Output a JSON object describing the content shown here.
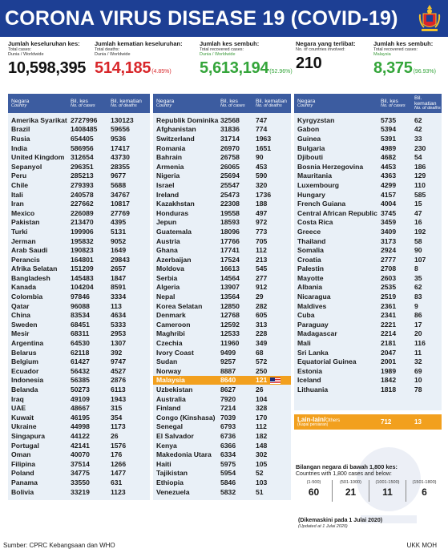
{
  "header": {
    "title": "CORONA VIRUS DISEASE 19 (COVID-19)"
  },
  "stats": [
    {
      "label": "Jumlah keseluruhan kes:",
      "sub1": "Total cases:",
      "sub2": "Dunia / Worldwide",
      "value": "10,598,395",
      "pct": "",
      "color": "#111111"
    },
    {
      "label": "Jumlah kematian keseluruhan:",
      "sub1": "Total deaths:",
      "sub2": "Dunia / Worldwide",
      "value": "514,185",
      "pct": "(4.85%)",
      "color": "#d8262a"
    },
    {
      "label": "Jumlah kes sembuh:",
      "sub1": "Total recovered cases:",
      "sub2": "Dunia / Worldwide",
      "value": "5,613,194",
      "pct": "(52.96%)",
      "color": "#34a53a"
    },
    {
      "label": "Negara yang terlibat:",
      "sub1": "No. of countries involved:",
      "sub2": "",
      "value": "210",
      "pct": "",
      "color": "#111111"
    },
    {
      "label": "Jumlah kes sembuh:",
      "sub1": "Total recovered cases:",
      "sub2": "Malaysia",
      "value": "8,375",
      "pct": "(96.93%)",
      "color": "#34a53a"
    }
  ],
  "columns": {
    "country": "Negara",
    "country_sub": "Country",
    "cases": "Bil. kes",
    "cases_sub": "No. of cases",
    "deaths": "Bil. kematian",
    "deaths_sub": "No. of deaths"
  },
  "table1": [
    [
      "Amerika Syarikat",
      "2727996",
      "130123"
    ],
    [
      "Brazil",
      "1408485",
      "59656"
    ],
    [
      "Rusia",
      "654405",
      "9536"
    ],
    [
      "India",
      "586956",
      "17417"
    ],
    [
      "United Kingdom",
      "312654",
      "43730"
    ],
    [
      "Sepanyol",
      "296351",
      "28355"
    ],
    [
      "Peru",
      "285213",
      "9677"
    ],
    [
      "Chile",
      "279393",
      "5688"
    ],
    [
      "Itali",
      "240578",
      "34767"
    ],
    [
      "Iran",
      "227662",
      "10817"
    ],
    [
      "Mexico",
      "226089",
      "27769"
    ],
    [
      "Pakistan",
      "213470",
      "4395"
    ],
    [
      "Turki",
      "199906",
      "5131"
    ],
    [
      "Jerman",
      "195832",
      "9052"
    ],
    [
      "Arab Saudi",
      "190823",
      "1649"
    ],
    [
      "Perancis",
      "164801",
      "29843"
    ],
    [
      "Afrika Selatan",
      "151209",
      "2657"
    ],
    [
      "Bangladesh",
      "145483",
      "1847"
    ],
    [
      "Kanada",
      "104204",
      "8591"
    ],
    [
      "Colombia",
      "97846",
      "3334"
    ],
    [
      "Qatar",
      "96088",
      "113"
    ],
    [
      "China",
      "83534",
      "4634"
    ],
    [
      "Sweden",
      "68451",
      "5333"
    ],
    [
      "Mesir",
      "68311",
      "2953"
    ],
    [
      "Argentina",
      "64530",
      "1307"
    ],
    [
      "Belarus",
      "62118",
      "392"
    ],
    [
      "Belgium",
      "61427",
      "9747"
    ],
    [
      "Ecuador",
      "56432",
      "4527"
    ],
    [
      "Indonesia",
      "56385",
      "2876"
    ],
    [
      "Belanda",
      "50273",
      "6113"
    ],
    [
      "Iraq",
      "49109",
      "1943"
    ],
    [
      "UAE",
      "48667",
      "315"
    ],
    [
      "Kuwait",
      "46195",
      "354"
    ],
    [
      "Ukraine",
      "44998",
      "1173"
    ],
    [
      "Singapura",
      "44122",
      "26"
    ],
    [
      "Portugal",
      "42141",
      "1576"
    ],
    [
      "Oman",
      "40070",
      "176"
    ],
    [
      "Filipina",
      "37514",
      "1266"
    ],
    [
      "Poland",
      "34775",
      "1477"
    ],
    [
      "Panama",
      "33550",
      "631"
    ],
    [
      "Bolivia",
      "33219",
      "1123"
    ]
  ],
  "table2": [
    [
      "Republik Dominika",
      "32568",
      "747"
    ],
    [
      "Afghanistan",
      "31836",
      "774"
    ],
    [
      "Switzerland",
      "31714",
      "1963"
    ],
    [
      "Romania",
      "26970",
      "1651"
    ],
    [
      "Bahrain",
      "26758",
      "90"
    ],
    [
      "Armenia",
      "26065",
      "453"
    ],
    [
      "Nigeria",
      "25694",
      "590"
    ],
    [
      "Israel",
      "25547",
      "320"
    ],
    [
      "Ireland",
      "25473",
      "1736"
    ],
    [
      "Kazakhstan",
      "22308",
      "188"
    ],
    [
      "Honduras",
      "19558",
      "497"
    ],
    [
      "Jepun",
      "18593",
      "972"
    ],
    [
      "Guatemala",
      "18096",
      "773"
    ],
    [
      "Austria",
      "17766",
      "705"
    ],
    [
      "Ghana",
      "17741",
      "112"
    ],
    [
      "Azerbaijan",
      "17524",
      "213"
    ],
    [
      "Moldova",
      "16613",
      "545"
    ],
    [
      "Serbia",
      "14564",
      "277"
    ],
    [
      "Algeria",
      "13907",
      "912"
    ],
    [
      "Nepal",
      "13564",
      "29"
    ],
    [
      "Korea Selatan",
      "12850",
      "282"
    ],
    [
      "Denmark",
      "12768",
      "605"
    ],
    [
      "Cameroon",
      "12592",
      "313"
    ],
    [
      "Maghribi",
      "12533",
      "228"
    ],
    [
      "Czechia",
      "11960",
      "349"
    ],
    [
      "Ivory Coast",
      "9499",
      "68"
    ],
    [
      "Sudan",
      "9257",
      "572"
    ],
    [
      "Norway",
      "8887",
      "250"
    ],
    [
      "Malaysia",
      "8640",
      "121"
    ],
    [
      "Uzbekistan",
      "8627",
      "26"
    ],
    [
      "Australia",
      "7920",
      "104"
    ],
    [
      "Finland",
      "7214",
      "328"
    ],
    [
      "Congo (Kinshasa)",
      "7039",
      "170"
    ],
    [
      "Senegal",
      "6793",
      "112"
    ],
    [
      "El Salvador",
      "6736",
      "182"
    ],
    [
      "Kenya",
      "6366",
      "148"
    ],
    [
      "Makedonia Utara",
      "6334",
      "302"
    ],
    [
      "Haiti",
      "5975",
      "105"
    ],
    [
      "Tajikistan",
      "5954",
      "52"
    ],
    [
      "Ethiopia",
      "5846",
      "103"
    ],
    [
      "Venezuela",
      "5832",
      "51"
    ]
  ],
  "table3": [
    [
      "Kyrgyzstan",
      "5735",
      "62"
    ],
    [
      "Gabon",
      "5394",
      "42"
    ],
    [
      "Guinea",
      "5391",
      "33"
    ],
    [
      "Bulgaria",
      "4989",
      "230"
    ],
    [
      "Djibouti",
      "4682",
      "54"
    ],
    [
      "Bosnia Herzegovina",
      "4453",
      "186"
    ],
    [
      "Mauritania",
      "4363",
      "129"
    ],
    [
      "Luxembourg",
      "4299",
      "110"
    ],
    [
      "Hungary",
      "4157",
      "585"
    ],
    [
      "French Guiana",
      "4004",
      "15"
    ],
    [
      "Central African Republic",
      "3745",
      "47"
    ],
    [
      "Costa Rica",
      "3459",
      "16"
    ],
    [
      "Greece",
      "3409",
      "192"
    ],
    [
      "Thailand",
      "3173",
      "58"
    ],
    [
      "Somalia",
      "2924",
      "90"
    ],
    [
      "Croatia",
      "2777",
      "107"
    ],
    [
      "Palestin",
      "2708",
      "8"
    ],
    [
      "Mayotte",
      "2603",
      "35"
    ],
    [
      "Albania",
      "2535",
      "62"
    ],
    [
      "Nicaragua",
      "2519",
      "83"
    ],
    [
      "Maldives",
      "2361",
      "9"
    ],
    [
      "Cuba",
      "2341",
      "86"
    ],
    [
      "Paraguay",
      "2221",
      "17"
    ],
    [
      "Madagascar",
      "2214",
      "20"
    ],
    [
      "Mali",
      "2181",
      "116"
    ],
    [
      "Sri Lanka",
      "2047",
      "11"
    ],
    [
      "Equatorial Guinea",
      "2001",
      "32"
    ],
    [
      "Estonia",
      "1989",
      "69"
    ],
    [
      "Iceland",
      "1842",
      "10"
    ],
    [
      "Lithuania",
      "1818",
      "78"
    ]
  ],
  "highlight_country": "Malaysia",
  "others": {
    "label": "Lain-lain/",
    "label_en": "Others",
    "sub": "(Kapal persiaran)",
    "cases": "712",
    "deaths": "13"
  },
  "below1800": {
    "title": "Bilangan negara di bawah 1,800 kes:",
    "subtitle": "Countries with 1,800 cases and below:",
    "bins": [
      {
        "range": "(1-500)",
        "value": "60"
      },
      {
        "range": "(501-1000)",
        "value": "21"
      },
      {
        "range": "(1001-1500)",
        "value": "11"
      },
      {
        "range": "(1501-1800)",
        "value": "6"
      }
    ]
  },
  "updated": {
    "ms": "(Dikemaskini pada 1 Julai 2020)",
    "en": "(Updated at 1 Julai 2020)"
  },
  "footer": {
    "source": "Sumber: CPRC Kebangsaan dan WHO",
    "org": "UKK MOH"
  }
}
